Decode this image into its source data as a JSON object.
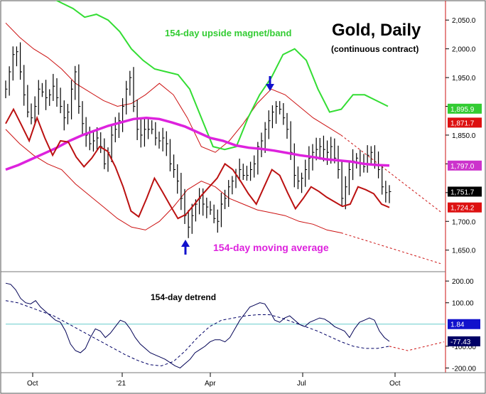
{
  "chart_data": {
    "type": "line",
    "title": "Gold, Daily",
    "subtitle": "(continuous contract)",
    "annotations": {
      "magnet_band": "154-day upside magnet/band",
      "moving_average": "154-day moving average",
      "detrend": "154-day detrend"
    },
    "x_ticks": [
      "Oct",
      "'21",
      "Apr",
      "Jul",
      "Oct"
    ],
    "price_panel": {
      "y_ticks": [
        "2,050.0",
        "2,000.0",
        "1,950.0",
        "1,900.0",
        "1,850.0",
        "1,800.0",
        "1,750.0",
        "1,700.0",
        "1,650.0"
      ],
      "ylim": [
        1615,
        2075
      ],
      "price_close": [
        1930,
        1960,
        1990,
        1995,
        1960,
        1920,
        1890,
        1880,
        1900,
        1930,
        1925,
        1915,
        1920,
        1935,
        1915,
        1900,
        1880,
        1890,
        1930,
        1960,
        1900,
        1870,
        1850,
        1835,
        1840,
        1845,
        1830,
        1800,
        1820,
        1850,
        1860,
        1875,
        1900,
        1930,
        1950,
        1900,
        1860,
        1850,
        1860,
        1860,
        1860,
        1845,
        1840,
        1845,
        1835,
        1800,
        1790,
        1770,
        1740,
        1710,
        1690,
        1710,
        1730,
        1740,
        1730,
        1725,
        1720,
        1705,
        1700,
        1730,
        1740,
        1760,
        1770,
        1780,
        1790,
        1780,
        1780,
        1790,
        1800,
        1830,
        1840,
        1860,
        1875,
        1890,
        1900,
        1895,
        1880,
        1860,
        1820,
        1780,
        1770,
        1775,
        1790,
        1810,
        1820,
        1825,
        1830,
        1825,
        1820,
        1830,
        1810,
        1790,
        1740,
        1760,
        1790,
        1805,
        1810,
        1800,
        1795,
        1815,
        1820,
        1800,
        1790,
        1760,
        1750,
        1751.7
      ],
      "bands": [
        {
          "name": "upper envelope",
          "values": [
            2045,
            2020,
            2000,
            1985,
            1965,
            1940,
            1925,
            1910,
            1900,
            1905,
            1920,
            1940,
            1920,
            1880,
            1830,
            1820,
            1840,
            1870,
            1905,
            1930,
            1920,
            1900,
            1880,
            1865,
            1850
          ]
        },
        {
          "name": "lower envelope",
          "values": [
            1860,
            1835,
            1815,
            1800,
            1790,
            1765,
            1745,
            1725,
            1705,
            1690,
            1685,
            1700,
            1725,
            1755,
            1770,
            1760,
            1740,
            1730,
            1720,
            1715,
            1710,
            1700,
            1695,
            1685,
            1680
          ]
        }
      ],
      "magnet_band": [
        2090,
        2080,
        2070,
        2055,
        2060,
        2050,
        2030,
        2000,
        1980,
        1965,
        1960,
        1955,
        1930,
        1880,
        1830,
        1825,
        1830,
        1880,
        1920,
        1950,
        1990,
        2000,
        1980,
        1930,
        1890,
        1895,
        1920,
        1920,
        1910,
        1900
      ],
      "moving_average": [
        1790,
        1798,
        1808,
        1818,
        1828,
        1840,
        1850,
        1858,
        1866,
        1872,
        1878,
        1880,
        1878,
        1872,
        1865,
        1855,
        1845,
        1840,
        1832,
        1828,
        1826,
        1823,
        1819,
        1815,
        1812,
        1808,
        1806,
        1804,
        1800,
        1798,
        1797
      ],
      "cycle_line": [
        1870,
        1895,
        1868,
        1840,
        1880,
        1845,
        1815,
        1840,
        1838,
        1812,
        1795,
        1810,
        1830,
        1822,
        1795,
        1760,
        1718,
        1708,
        1740,
        1775,
        1752,
        1728,
        1705,
        1712,
        1728,
        1745,
        1760,
        1775,
        1800,
        1790,
        1770,
        1748,
        1730,
        1760,
        1790,
        1780,
        1750,
        1722,
        1740,
        1760,
        1752,
        1742,
        1734,
        1726,
        1730,
        1760,
        1755,
        1748,
        1730,
        1724.2
      ],
      "badges": [
        {
          "label": "1,895.9",
          "value": 1895.9,
          "color": "#33cc33",
          "text_color": "#ffffff"
        },
        {
          "label": "1,871.7",
          "value": 1871.7,
          "color": "#dd1111",
          "text_color": "#ffffff"
        },
        {
          "label": "1,797.0",
          "value": 1797.0,
          "color": "#cc33cc",
          "text_color": "#ffffff"
        },
        {
          "label": "1,751.7",
          "value": 1751.7,
          "color": "#000000",
          "text_color": "#ffffff"
        },
        {
          "label": "1,724.2",
          "value": 1724.2,
          "color": "#dd1111",
          "text_color": "#ffffff"
        }
      ]
    },
    "detrend_panel": {
      "y_ticks": [
        "200.00",
        "100.00",
        "-100.00",
        "-200.00"
      ],
      "ylim": [
        -215,
        230
      ],
      "values": [
        190,
        185,
        160,
        120,
        100,
        95,
        110,
        80,
        60,
        40,
        20,
        10,
        -30,
        -90,
        -120,
        -130,
        -110,
        -60,
        -20,
        -30,
        -60,
        -40,
        -10,
        20,
        10,
        -20,
        -60,
        -90,
        -110,
        -130,
        -140,
        -150,
        -160,
        -175,
        -190,
        -200,
        -180,
        -160,
        -130,
        -115,
        -100,
        -80,
        -70,
        -70,
        -80,
        -60,
        -20,
        20,
        50,
        80,
        90,
        100,
        95,
        60,
        20,
        10,
        30,
        40,
        20,
        0,
        -10,
        10,
        20,
        30,
        25,
        10,
        -10,
        -20,
        -30,
        -60,
        -20,
        10,
        20,
        30,
        20,
        -30,
        -60,
        -77.43
      ],
      "dashed_trend": [
        110,
        100,
        80,
        60,
        40,
        10,
        -20,
        -50,
        -80,
        -110,
        -140,
        -165,
        -185,
        -190,
        -170,
        -120,
        -60,
        -10,
        20,
        30,
        40,
        45,
        45,
        30,
        10,
        -10,
        -30,
        -55,
        -80,
        -100,
        -110,
        -110,
        -100
      ],
      "zero_value": 1.84,
      "badges": [
        {
          "label": "1.84",
          "value": 1.84,
          "color": "#1111cc",
          "text_color": "#ffffff"
        },
        {
          "label": "-77.43",
          "value": -77.43,
          "color": "#000066",
          "text_color": "#ffffff"
        }
      ]
    },
    "grid": false,
    "colors": {
      "price_bars": "#000000",
      "envelope": "#cc1111",
      "magnet_band": "#33dd33",
      "moving_average": "#dd22dd",
      "cycle": "#bb1111",
      "detrend": "#000055",
      "detrend_zero": "#66cccc",
      "arrow": "#1111cc"
    }
  }
}
